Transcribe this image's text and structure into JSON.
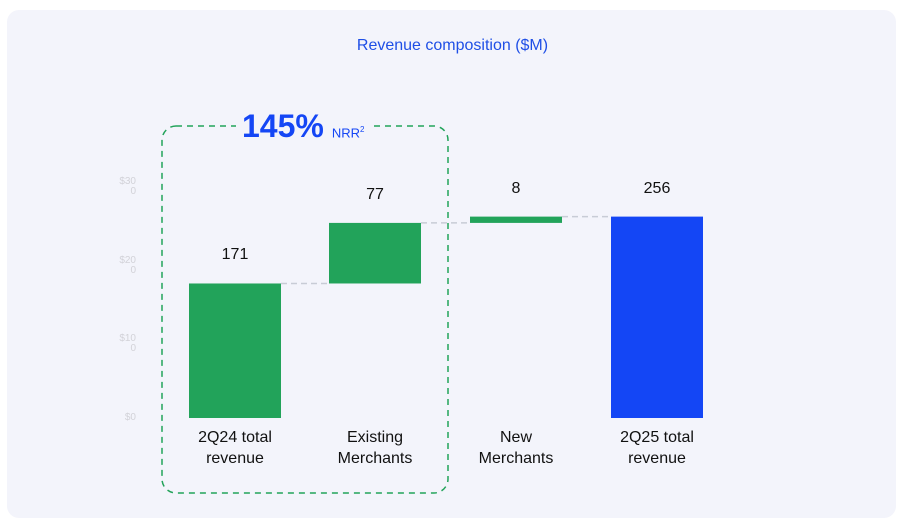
{
  "chart_data": {
    "type": "waterfall",
    "title": "Revenue composition ($M)",
    "categories": [
      "2Q24 total revenue",
      "Existing Merchants",
      "New Merchants",
      "2Q25 total revenue"
    ],
    "category_lines": [
      [
        "2Q24 total",
        "revenue"
      ],
      [
        "Existing",
        "Merchants"
      ],
      [
        "New",
        "Merchants"
      ],
      [
        "2Q25 total",
        "revenue"
      ]
    ],
    "values": [
      171,
      77,
      8,
      256
    ],
    "value_labels": [
      "171",
      "77",
      "8",
      "256"
    ],
    "kinds": [
      "total",
      "increase",
      "increase",
      "total"
    ],
    "colors": {
      "increase": "#22a35a",
      "start_total": "#22a35a",
      "end_total": "#1446f5",
      "connector": "#c8ccd6",
      "bracket": "#22a35a"
    },
    "ylim": [
      0,
      300
    ],
    "y_ticks": [
      {
        "value": 0,
        "label": [
          "$0"
        ]
      },
      {
        "value": 100,
        "label": [
          "$10",
          "0"
        ]
      },
      {
        "value": 200,
        "label": [
          "$20",
          "0"
        ]
      },
      {
        "value": 300,
        "label": [
          "$30",
          "0"
        ]
      }
    ],
    "annotation": {
      "value": "145%",
      "label": "NRR",
      "footnote": "2",
      "spans": [
        "2Q24 total revenue",
        "Existing Merchants"
      ]
    }
  }
}
